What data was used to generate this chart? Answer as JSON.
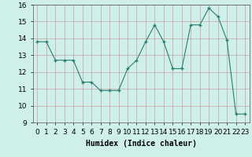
{
  "x": [
    0,
    1,
    2,
    3,
    4,
    5,
    6,
    7,
    8,
    9,
    10,
    11,
    12,
    13,
    14,
    15,
    16,
    17,
    18,
    19,
    20,
    21,
    22,
    23
  ],
  "y": [
    13.8,
    13.8,
    12.7,
    12.7,
    12.7,
    11.4,
    11.4,
    10.9,
    10.9,
    10.9,
    12.2,
    12.7,
    13.8,
    14.8,
    13.8,
    12.2,
    12.2,
    14.8,
    14.8,
    15.8,
    15.3,
    13.9,
    9.5,
    9.5
  ],
  "xlabel": "Humidex (Indice chaleur)",
  "ylim": [
    9,
    16
  ],
  "xlim_min": -0.5,
  "xlim_max": 23.5,
  "yticks": [
    9,
    10,
    11,
    12,
    13,
    14,
    15,
    16
  ],
  "xticks": [
    0,
    1,
    2,
    3,
    4,
    5,
    6,
    7,
    8,
    9,
    10,
    11,
    12,
    13,
    14,
    15,
    16,
    17,
    18,
    19,
    20,
    21,
    22,
    23
  ],
  "line_color": "#2a7d6f",
  "marker_color": "#2a7d6f",
  "bg_color": "#cff0ea",
  "grid_color_h": "#c8a0a0",
  "grid_color_v": "#c8a0a0",
  "xlabel_fontsize": 7,
  "tick_fontsize": 6.5
}
